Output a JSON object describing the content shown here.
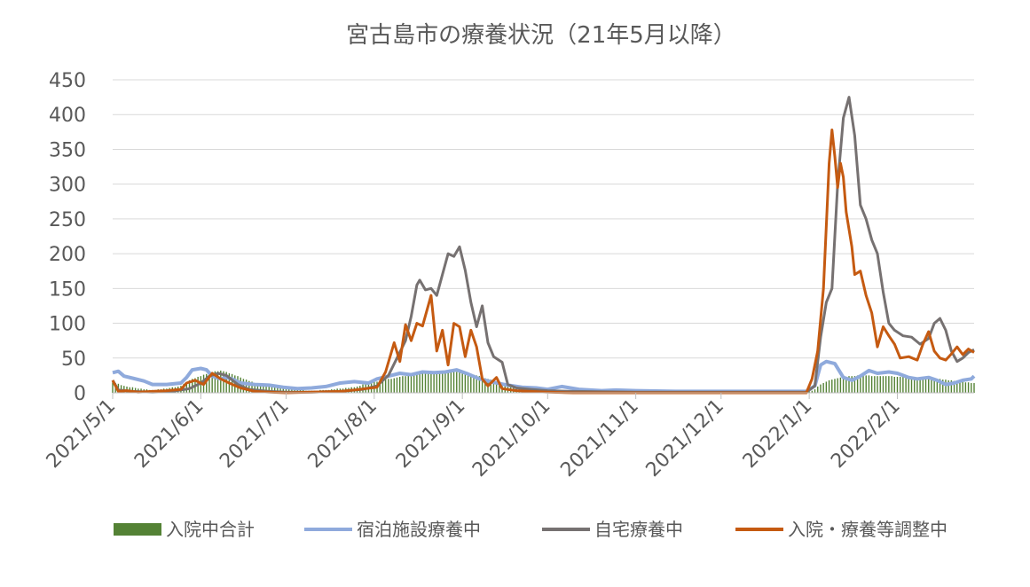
{
  "chart_data": {
    "type": "line",
    "title": "宮古島市の療養状況（21年5月以降）",
    "xlabel": "",
    "ylabel": "",
    "ylim": [
      0,
      450
    ],
    "yticks": [
      "0",
      "50",
      "100",
      "150",
      "200",
      "250",
      "300",
      "350",
      "400",
      "450"
    ],
    "xticks": [
      "2021/5/1",
      "2021/6/1",
      "2021/7/1",
      "2021/8/1",
      "2021/9/1",
      "2021/10/1",
      "2021/11/1",
      "2021/12/1",
      "2022/1/1",
      "2022/2/1"
    ],
    "xrange": [
      "2021-05-01",
      "2022-02-28"
    ],
    "grid": true,
    "legend_position": "bottom",
    "colors": {
      "hospital": "#548235",
      "facility": "#8faadc",
      "home": "#767171",
      "adjusting": "#c55a11"
    },
    "series": [
      {
        "name": "入院中合計",
        "type": "bar",
        "color": "#548235",
        "points": [
          [
            "2021-05-01",
            15
          ],
          [
            "2021-05-05",
            10
          ],
          [
            "2021-05-10",
            6
          ],
          [
            "2021-05-15",
            4
          ],
          [
            "2021-05-20",
            6
          ],
          [
            "2021-05-25",
            10
          ],
          [
            "2021-05-28",
            18
          ],
          [
            "2021-06-01",
            24
          ],
          [
            "2021-06-05",
            30
          ],
          [
            "2021-06-08",
            32
          ],
          [
            "2021-06-10",
            30
          ],
          [
            "2021-06-15",
            22
          ],
          [
            "2021-06-20",
            14
          ],
          [
            "2021-06-25",
            10
          ],
          [
            "2021-06-30",
            8
          ],
          [
            "2021-07-05",
            4
          ],
          [
            "2021-07-10",
            3
          ],
          [
            "2021-07-15",
            4
          ],
          [
            "2021-07-20",
            6
          ],
          [
            "2021-07-25",
            8
          ],
          [
            "2021-07-30",
            14
          ],
          [
            "2021-08-04",
            18
          ],
          [
            "2021-08-09",
            22
          ],
          [
            "2021-08-14",
            26
          ],
          [
            "2021-08-19",
            28
          ],
          [
            "2021-08-24",
            30
          ],
          [
            "2021-08-29",
            30
          ],
          [
            "2021-09-01",
            30
          ],
          [
            "2021-09-05",
            26
          ],
          [
            "2021-09-10",
            20
          ],
          [
            "2021-09-15",
            14
          ],
          [
            "2021-09-20",
            8
          ],
          [
            "2021-09-25",
            5
          ],
          [
            "2021-09-30",
            3
          ],
          [
            "2021-10-05",
            2
          ],
          [
            "2021-10-10",
            1
          ],
          [
            "2021-10-15",
            0
          ],
          [
            "2021-11-01",
            0
          ],
          [
            "2021-12-01",
            0
          ],
          [
            "2021-12-31",
            0
          ],
          [
            "2022-01-03",
            5
          ],
          [
            "2022-01-05",
            12
          ],
          [
            "2022-01-08",
            18
          ],
          [
            "2022-01-12",
            22
          ],
          [
            "2022-01-16",
            24
          ],
          [
            "2022-01-20",
            25
          ],
          [
            "2022-01-24",
            24
          ],
          [
            "2022-01-28",
            24
          ],
          [
            "2022-02-01",
            23
          ],
          [
            "2022-02-05",
            22
          ],
          [
            "2022-02-10",
            21
          ],
          [
            "2022-02-15",
            20
          ],
          [
            "2022-02-20",
            18
          ],
          [
            "2022-02-25",
            15
          ],
          [
            "2022-02-28",
            14
          ]
        ]
      },
      {
        "name": "宿泊施設療養中",
        "type": "line",
        "color": "#8faadc",
        "points": [
          [
            "2021-05-01",
            29
          ],
          [
            "2021-05-03",
            31
          ],
          [
            "2021-05-05",
            24
          ],
          [
            "2021-05-08",
            21
          ],
          [
            "2021-05-12",
            17
          ],
          [
            "2021-05-15",
            12
          ],
          [
            "2021-05-20",
            12
          ],
          [
            "2021-05-25",
            14
          ],
          [
            "2021-05-27",
            22
          ],
          [
            "2021-05-29",
            33
          ],
          [
            "2021-06-01",
            35
          ],
          [
            "2021-06-03",
            33
          ],
          [
            "2021-06-05",
            24
          ],
          [
            "2021-06-08",
            20
          ],
          [
            "2021-06-10",
            22
          ],
          [
            "2021-06-12",
            20
          ],
          [
            "2021-06-15",
            14
          ],
          [
            "2021-06-20",
            12
          ],
          [
            "2021-06-25",
            11
          ],
          [
            "2021-06-30",
            8
          ],
          [
            "2021-07-05",
            6
          ],
          [
            "2021-07-10",
            7
          ],
          [
            "2021-07-15",
            9
          ],
          [
            "2021-07-20",
            14
          ],
          [
            "2021-07-25",
            16
          ],
          [
            "2021-07-30",
            14
          ],
          [
            "2021-08-02",
            20
          ],
          [
            "2021-08-06",
            24
          ],
          [
            "2021-08-10",
            28
          ],
          [
            "2021-08-14",
            26
          ],
          [
            "2021-08-18",
            30
          ],
          [
            "2021-08-22",
            29
          ],
          [
            "2021-08-26",
            30
          ],
          [
            "2021-08-30",
            33
          ],
          [
            "2021-09-03",
            27
          ],
          [
            "2021-09-07",
            20
          ],
          [
            "2021-09-12",
            15
          ],
          [
            "2021-09-17",
            11
          ],
          [
            "2021-09-22",
            8
          ],
          [
            "2021-09-27",
            7
          ],
          [
            "2021-10-01",
            5
          ],
          [
            "2021-10-06",
            9
          ],
          [
            "2021-10-12",
            5
          ],
          [
            "2021-10-20",
            3
          ],
          [
            "2021-10-25",
            4
          ],
          [
            "2021-11-01",
            3
          ],
          [
            "2021-11-15",
            2
          ],
          [
            "2021-12-01",
            2
          ],
          [
            "2021-12-31",
            2
          ],
          [
            "2022-01-03",
            10
          ],
          [
            "2022-01-05",
            40
          ],
          [
            "2022-01-07",
            45
          ],
          [
            "2022-01-10",
            42
          ],
          [
            "2022-01-13",
            22
          ],
          [
            "2022-01-16",
            18
          ],
          [
            "2022-01-19",
            24
          ],
          [
            "2022-01-22",
            32
          ],
          [
            "2022-01-25",
            28
          ],
          [
            "2022-01-29",
            30
          ],
          [
            "2022-02-01",
            28
          ],
          [
            "2022-02-05",
            22
          ],
          [
            "2022-02-08",
            20
          ],
          [
            "2022-02-12",
            22
          ],
          [
            "2022-02-15",
            18
          ],
          [
            "2022-02-18",
            12
          ],
          [
            "2022-02-21",
            14
          ],
          [
            "2022-02-24",
            18
          ],
          [
            "2022-02-27",
            20
          ],
          [
            "2022-02-28",
            24
          ]
        ]
      },
      {
        "name": "自宅療養中",
        "type": "line",
        "color": "#767171",
        "points": [
          [
            "2021-05-01",
            18
          ],
          [
            "2021-05-03",
            4
          ],
          [
            "2021-05-08",
            2
          ],
          [
            "2021-05-15",
            1
          ],
          [
            "2021-05-22",
            2
          ],
          [
            "2021-05-28",
            6
          ],
          [
            "2021-06-01",
            14
          ],
          [
            "2021-06-04",
            24
          ],
          [
            "2021-06-07",
            28
          ],
          [
            "2021-06-10",
            25
          ],
          [
            "2021-06-14",
            12
          ],
          [
            "2021-06-18",
            5
          ],
          [
            "2021-06-25",
            2
          ],
          [
            "2021-07-01",
            1
          ],
          [
            "2021-07-10",
            1
          ],
          [
            "2021-07-20",
            2
          ],
          [
            "2021-07-28",
            5
          ],
          [
            "2021-08-02",
            10
          ],
          [
            "2021-08-06",
            25
          ],
          [
            "2021-08-09",
            50
          ],
          [
            "2021-08-12",
            75
          ],
          [
            "2021-08-14",
            110
          ],
          [
            "2021-08-16",
            155
          ],
          [
            "2021-08-17",
            162
          ],
          [
            "2021-08-19",
            148
          ],
          [
            "2021-08-21",
            150
          ],
          [
            "2021-08-23",
            140
          ],
          [
            "2021-08-25",
            170
          ],
          [
            "2021-08-27",
            200
          ],
          [
            "2021-08-29",
            196
          ],
          [
            "2021-08-31",
            210
          ],
          [
            "2021-09-02",
            176
          ],
          [
            "2021-09-04",
            130
          ],
          [
            "2021-09-06",
            95
          ],
          [
            "2021-09-08",
            125
          ],
          [
            "2021-09-10",
            72
          ],
          [
            "2021-09-12",
            52
          ],
          [
            "2021-09-15",
            44
          ],
          [
            "2021-09-17",
            12
          ],
          [
            "2021-09-20",
            7
          ],
          [
            "2021-09-25",
            5
          ],
          [
            "2021-10-01",
            3
          ],
          [
            "2021-10-10",
            2
          ],
          [
            "2021-11-01",
            1
          ],
          [
            "2021-12-01",
            1
          ],
          [
            "2021-12-31",
            1
          ],
          [
            "2022-01-03",
            10
          ],
          [
            "2022-01-05",
            80
          ],
          [
            "2022-01-07",
            130
          ],
          [
            "2022-01-09",
            150
          ],
          [
            "2022-01-11",
            300
          ],
          [
            "2022-01-13",
            395
          ],
          [
            "2022-01-15",
            425
          ],
          [
            "2022-01-17",
            370
          ],
          [
            "2022-01-19",
            270
          ],
          [
            "2022-01-21",
            250
          ],
          [
            "2022-01-23",
            220
          ],
          [
            "2022-01-25",
            200
          ],
          [
            "2022-01-27",
            145
          ],
          [
            "2022-01-29",
            100
          ],
          [
            "2022-01-31",
            90
          ],
          [
            "2022-02-03",
            82
          ],
          [
            "2022-02-06",
            80
          ],
          [
            "2022-02-09",
            70
          ],
          [
            "2022-02-12",
            78
          ],
          [
            "2022-02-14",
            100
          ],
          [
            "2022-02-16",
            107
          ],
          [
            "2022-02-18",
            90
          ],
          [
            "2022-02-20",
            60
          ],
          [
            "2022-02-22",
            45
          ],
          [
            "2022-02-24",
            50
          ],
          [
            "2022-02-26",
            58
          ],
          [
            "2022-02-28",
            62
          ]
        ]
      },
      {
        "name": "入院・療養等調整中",
        "type": "line",
        "color": "#c55a11",
        "points": [
          [
            "2021-05-01",
            18
          ],
          [
            "2021-05-03",
            2
          ],
          [
            "2021-05-06",
            3
          ],
          [
            "2021-05-10",
            1
          ],
          [
            "2021-05-15",
            2
          ],
          [
            "2021-05-20",
            3
          ],
          [
            "2021-05-25",
            5
          ],
          [
            "2021-05-27",
            14
          ],
          [
            "2021-05-30",
            18
          ],
          [
            "2021-06-02",
            12
          ],
          [
            "2021-06-05",
            28
          ],
          [
            "2021-06-08",
            20
          ],
          [
            "2021-06-11",
            14
          ],
          [
            "2021-06-15",
            7
          ],
          [
            "2021-06-20",
            2
          ],
          [
            "2021-06-25",
            1
          ],
          [
            "2021-07-01",
            0
          ],
          [
            "2021-07-10",
            1
          ],
          [
            "2021-07-20",
            2
          ],
          [
            "2021-07-25",
            4
          ],
          [
            "2021-07-29",
            6
          ],
          [
            "2021-08-02",
            8
          ],
          [
            "2021-08-05",
            30
          ],
          [
            "2021-08-08",
            72
          ],
          [
            "2021-08-10",
            45
          ],
          [
            "2021-08-12",
            98
          ],
          [
            "2021-08-14",
            75
          ],
          [
            "2021-08-16",
            100
          ],
          [
            "2021-08-18",
            96
          ],
          [
            "2021-08-21",
            140
          ],
          [
            "2021-08-23",
            60
          ],
          [
            "2021-08-25",
            90
          ],
          [
            "2021-08-27",
            40
          ],
          [
            "2021-08-29",
            100
          ],
          [
            "2021-08-31",
            95
          ],
          [
            "2021-09-02",
            52
          ],
          [
            "2021-09-04",
            90
          ],
          [
            "2021-09-06",
            66
          ],
          [
            "2021-09-08",
            20
          ],
          [
            "2021-09-10",
            10
          ],
          [
            "2021-09-13",
            22
          ],
          [
            "2021-09-15",
            6
          ],
          [
            "2021-09-20",
            3
          ],
          [
            "2021-09-25",
            2
          ],
          [
            "2021-10-01",
            1
          ],
          [
            "2021-10-10",
            0
          ],
          [
            "2021-11-01",
            0
          ],
          [
            "2021-12-01",
            0
          ],
          [
            "2021-12-31",
            0
          ],
          [
            "2022-01-02",
            20
          ],
          [
            "2022-01-04",
            60
          ],
          [
            "2022-01-06",
            150
          ],
          [
            "2022-01-08",
            330
          ],
          [
            "2022-01-09",
            378
          ],
          [
            "2022-01-10",
            340
          ],
          [
            "2022-01-11",
            295
          ],
          [
            "2022-01-12",
            330
          ],
          [
            "2022-01-13",
            310
          ],
          [
            "2022-01-14",
            260
          ],
          [
            "2022-01-16",
            210
          ],
          [
            "2022-01-17",
            170
          ],
          [
            "2022-01-19",
            175
          ],
          [
            "2022-01-21",
            140
          ],
          [
            "2022-01-23",
            115
          ],
          [
            "2022-01-25",
            66
          ],
          [
            "2022-01-27",
            95
          ],
          [
            "2022-01-29",
            82
          ],
          [
            "2022-01-31",
            70
          ],
          [
            "2022-02-02",
            50
          ],
          [
            "2022-02-05",
            52
          ],
          [
            "2022-02-08",
            47
          ],
          [
            "2022-02-10",
            70
          ],
          [
            "2022-02-12",
            88
          ],
          [
            "2022-02-14",
            60
          ],
          [
            "2022-02-16",
            50
          ],
          [
            "2022-02-18",
            47
          ],
          [
            "2022-02-20",
            56
          ],
          [
            "2022-02-22",
            66
          ],
          [
            "2022-02-24",
            55
          ],
          [
            "2022-02-26",
            63
          ],
          [
            "2022-02-28",
            58
          ]
        ]
      }
    ]
  }
}
